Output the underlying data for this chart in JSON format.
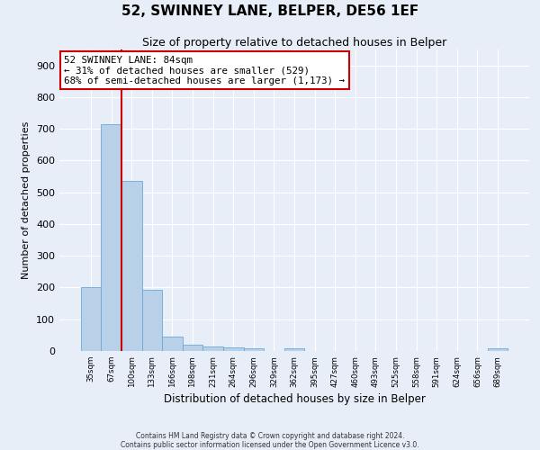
{
  "title": "52, SWINNEY LANE, BELPER, DE56 1EF",
  "subtitle": "Size of property relative to detached houses in Belper",
  "xlabel": "Distribution of detached houses by size in Belper",
  "ylabel": "Number of detached properties",
  "bar_labels": [
    "35sqm",
    "67sqm",
    "100sqm",
    "133sqm",
    "166sqm",
    "198sqm",
    "231sqm",
    "264sqm",
    "296sqm",
    "329sqm",
    "362sqm",
    "395sqm",
    "427sqm",
    "460sqm",
    "493sqm",
    "525sqm",
    "558sqm",
    "591sqm",
    "624sqm",
    "656sqm",
    "689sqm"
  ],
  "bar_values": [
    200,
    714,
    536,
    192,
    44,
    20,
    14,
    10,
    8,
    0,
    8,
    0,
    0,
    0,
    0,
    0,
    0,
    0,
    0,
    0,
    9
  ],
  "bar_color": "#b8d0e8",
  "bar_edgecolor": "#6aaad4",
  "vline_color": "#cc0000",
  "annotation_title": "52 SWINNEY LANE: 84sqm",
  "annotation_line1": "← 31% of detached houses are smaller (529)",
  "annotation_line2": "68% of semi-detached houses are larger (1,173) →",
  "annotation_box_edgecolor": "#cc0000",
  "ylim": [
    0,
    950
  ],
  "yticks": [
    0,
    100,
    200,
    300,
    400,
    500,
    600,
    700,
    800,
    900
  ],
  "bg_color": "#e8eef8",
  "grid_color": "#ffffff",
  "sqm_values": [
    35,
    67,
    100,
    133,
    166,
    198,
    231,
    264,
    296,
    329,
    362,
    395,
    427,
    460,
    493,
    525,
    558,
    591,
    624,
    656,
    689
  ],
  "prop_size": 84,
  "footer1": "Contains HM Land Registry data © Crown copyright and database right 2024.",
  "footer2": "Contains public sector information licensed under the Open Government Licence v3.0."
}
